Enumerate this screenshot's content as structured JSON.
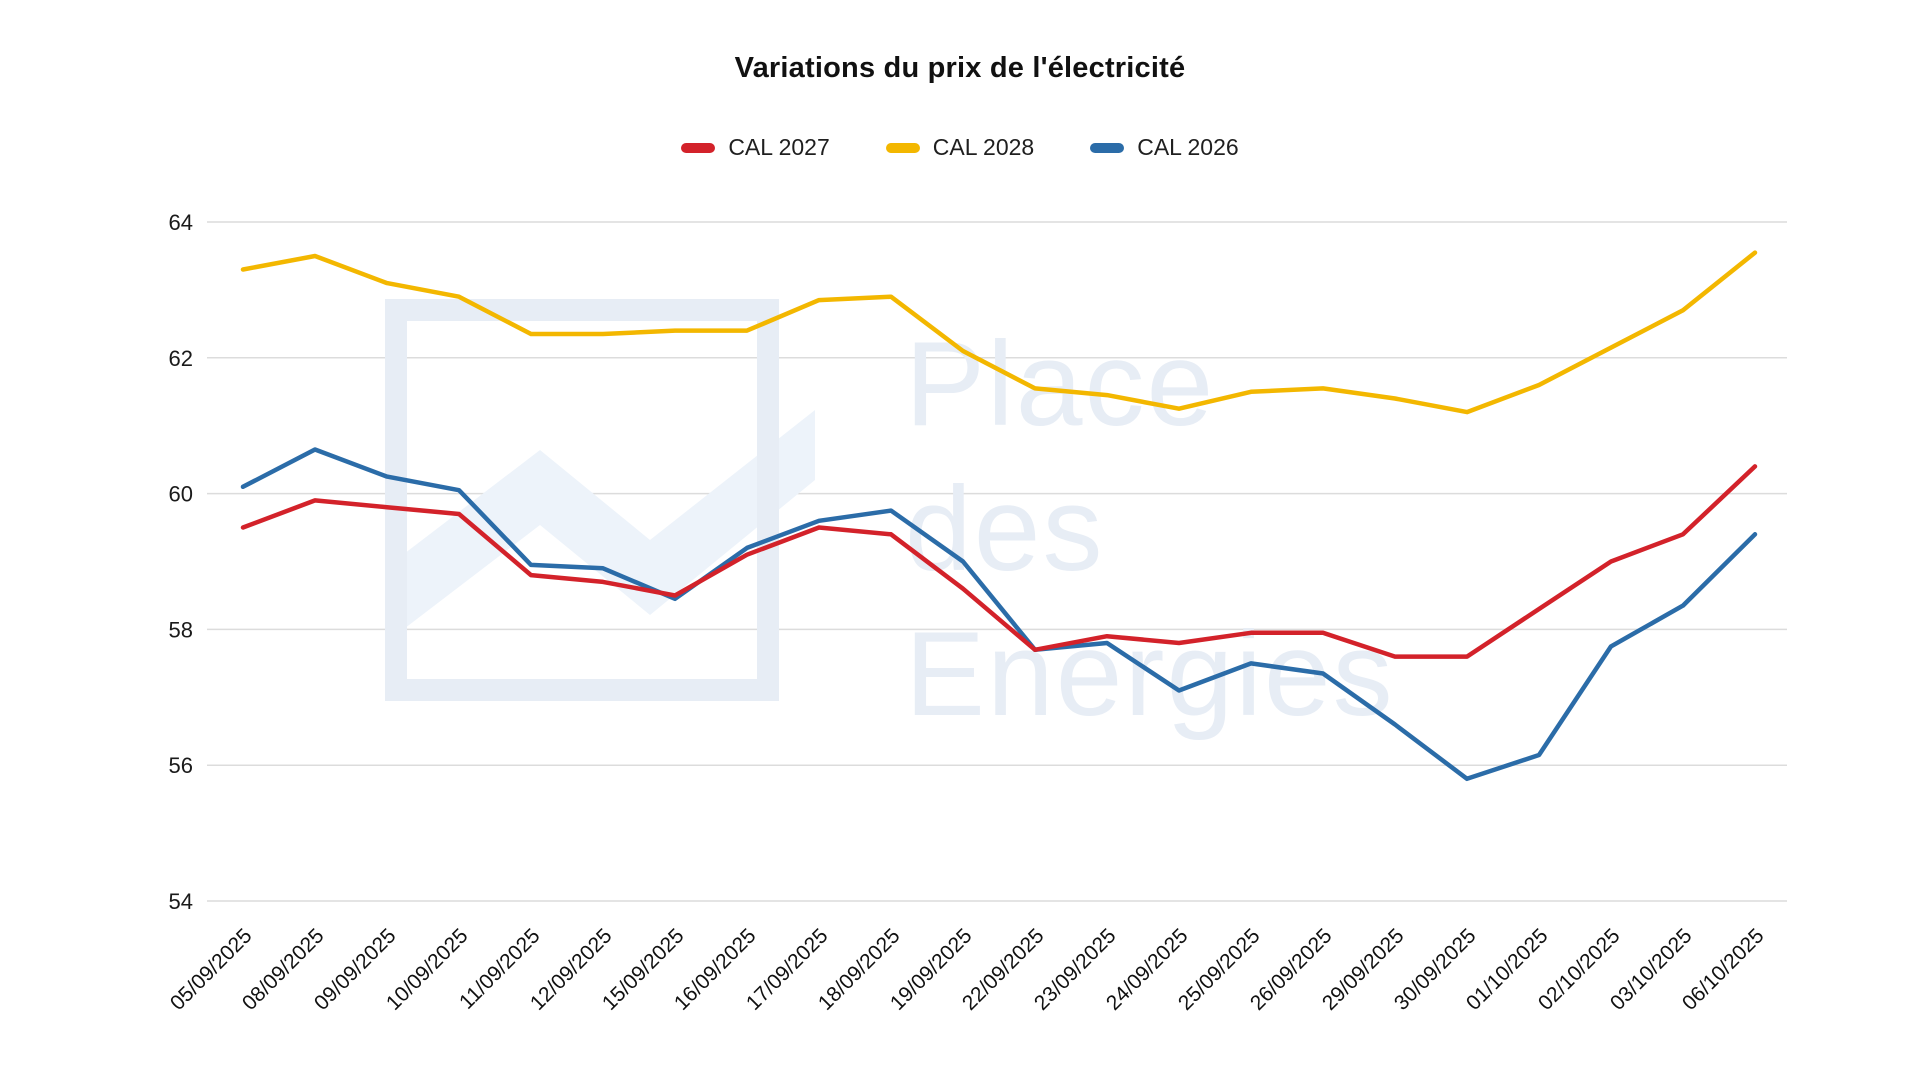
{
  "title": "Variations du prix de l'électricité",
  "watermark": {
    "lines": [
      "Place",
      "des",
      "Energies"
    ],
    "color": "#e7edf5",
    "logo_fill": "#edf3fa"
  },
  "colors": {
    "cal_2027": "#d3222a",
    "cal_2028": "#f3b700",
    "cal_2026": "#2b6ca8",
    "grid": "#dcdcdc",
    "background": "#ffffff"
  },
  "chart_data": {
    "type": "line",
    "title": "Variations du prix de l'électricité",
    "xlabel": "",
    "ylabel": "",
    "ylim": [
      54,
      64
    ],
    "yticks": [
      54,
      56,
      58,
      60,
      62,
      64
    ],
    "grid": true,
    "legend_position": "top",
    "x": [
      "05/09/2025",
      "08/09/2025",
      "09/09/2025",
      "10/09/2025",
      "11/09/2025",
      "12/09/2025",
      "15/09/2025",
      "16/09/2025",
      "17/09/2025",
      "18/09/2025",
      "19/09/2025",
      "22/09/2025",
      "23/09/2025",
      "24/09/2025",
      "25/09/2025",
      "26/09/2025",
      "29/09/2025",
      "30/09/2025",
      "01/10/2025",
      "02/10/2025",
      "03/10/2025",
      "06/10/2025"
    ],
    "series": [
      {
        "name": "CAL 2027",
        "color": "#d3222a",
        "values": [
          59.5,
          59.9,
          59.8,
          59.7,
          58.8,
          58.7,
          58.5,
          59.1,
          59.5,
          59.4,
          58.6,
          57.7,
          57.9,
          57.8,
          57.95,
          57.95,
          57.6,
          57.6,
          58.3,
          59.0,
          59.4,
          60.4
        ]
      },
      {
        "name": "CAL 2028",
        "color": "#f3b700",
        "values": [
          63.3,
          63.5,
          63.1,
          62.9,
          62.35,
          62.35,
          62.4,
          62.4,
          62.85,
          62.9,
          62.1,
          61.55,
          61.45,
          61.25,
          61.5,
          61.55,
          61.4,
          61.2,
          61.6,
          62.15,
          62.7,
          63.55
        ]
      },
      {
        "name": "CAL 2026",
        "color": "#2b6ca8",
        "values": [
          60.1,
          60.65,
          60.25,
          60.05,
          58.95,
          58.9,
          58.45,
          59.2,
          59.6,
          59.75,
          59.0,
          57.7,
          57.8,
          57.1,
          57.5,
          57.35,
          56.6,
          55.8,
          56.15,
          57.75,
          58.35,
          59.4
        ]
      }
    ]
  }
}
